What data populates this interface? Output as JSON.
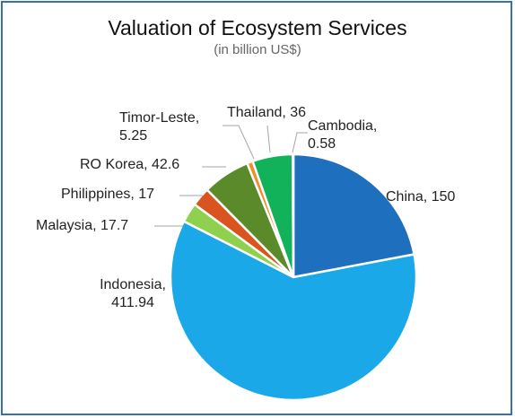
{
  "chart_data": {
    "type": "pie",
    "title": "Valuation of Ecosystem Services",
    "subtitle": "(in billion US$)",
    "slices": [
      {
        "name": "China",
        "value": 150,
        "label": "China, 150",
        "color": "#1f6fbf"
      },
      {
        "name": "Indonesia",
        "value": 411.94,
        "label_lines": [
          "Indonesia,",
          "411.94"
        ],
        "color": "#1aa8e8"
      },
      {
        "name": "Malaysia",
        "value": 17.7,
        "label": "Malaysia, 17.7",
        "color": "#8fd14f"
      },
      {
        "name": "Philippines",
        "value": 17,
        "label": "Philippines, 17",
        "color": "#d9541e"
      },
      {
        "name": "RO Korea",
        "value": 42.6,
        "label": "RO Korea, 42.6",
        "color": "#5b8a2a"
      },
      {
        "name": "Timor-Leste",
        "value": 5.25,
        "label_lines": [
          "Timor-Leste,",
          "5.25"
        ],
        "color": "#f08c2a"
      },
      {
        "name": "Thailand",
        "value": 36,
        "label": "Thailand, 36",
        "color": "#12b25a"
      },
      {
        "name": "Cambodia",
        "value": 0.58,
        "label_lines": [
          "Cambodia,",
          "0.58"
        ],
        "color": "#9ec9e6"
      }
    ],
    "legend": "none"
  }
}
